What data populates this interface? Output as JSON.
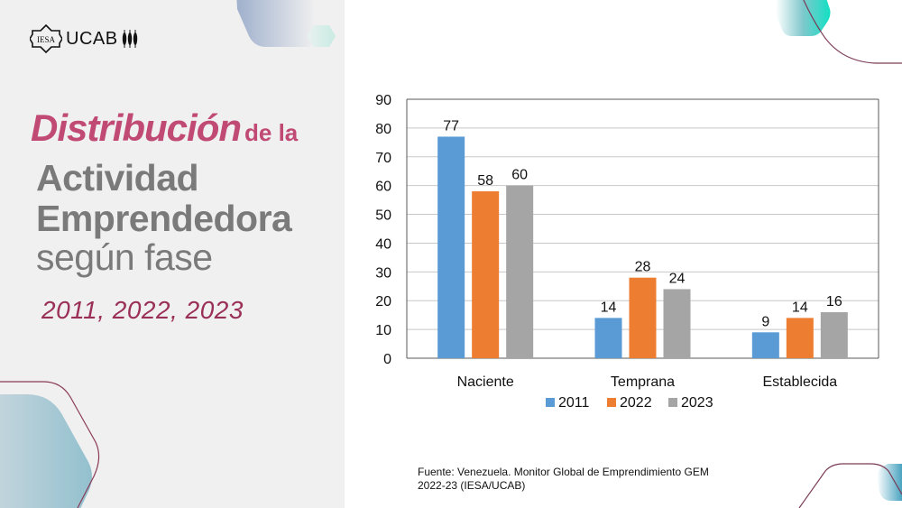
{
  "header": {
    "logo_iesa": "IESA",
    "logo_ucab": "UCAB"
  },
  "title": {
    "part1": "Distribución",
    "part2": "de la",
    "line2": "Actividad",
    "line3": "Emprendedora",
    "line4": "según fase",
    "years": "2011, 2022, 2023"
  },
  "source": {
    "line1": "Fuente: Venezuela. Monitor Global de Emprendimiento GEM",
    "line2": "2022-23 (IESA/UCAB)"
  },
  "colors": {
    "accent_pink": "#c04a74",
    "accent_wine": "#9a2f58",
    "title_gray": "#7a7a7a",
    "panel_bg": "#f0f0f0"
  },
  "chart_data": {
    "type": "bar",
    "title": "",
    "xlabel": "",
    "ylabel": "",
    "categories": [
      "Naciente",
      "Temprana",
      "Establecida"
    ],
    "series": [
      {
        "name": "2011",
        "color": "#5b9bd5",
        "values": [
          77,
          14,
          9
        ]
      },
      {
        "name": "2022",
        "color": "#ed7d31",
        "values": [
          58,
          28,
          14
        ]
      },
      {
        "name": "2023",
        "color": "#a5a5a5",
        "values": [
          60,
          24,
          16
        ]
      }
    ],
    "ylim": [
      0,
      90
    ],
    "yticks": [
      0,
      10,
      20,
      30,
      40,
      50,
      60,
      70,
      80,
      90
    ],
    "grid": true,
    "data_labels": true,
    "legend_position": "bottom"
  }
}
